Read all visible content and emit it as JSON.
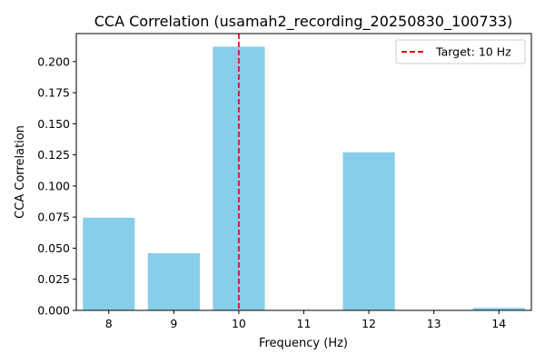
{
  "chart_data": {
    "type": "bar",
    "title": "CCA Correlation (usamah2_recording_20250830_100733)",
    "xlabel": "Frequency (Hz)",
    "ylabel": "CCA Correlation",
    "x": [
      8,
      9,
      10,
      11,
      12,
      13,
      14
    ],
    "values": [
      0.0745,
      0.046,
      0.212,
      0.0,
      0.127,
      0.0,
      0.002
    ],
    "xlim": [
      7.5,
      14.5
    ],
    "ylim": [
      0,
      0.2225
    ],
    "yticks": [
      "0.000",
      "0.025",
      "0.050",
      "0.075",
      "0.100",
      "0.125",
      "0.150",
      "0.175",
      "0.200"
    ],
    "xticks": [
      "8",
      "9",
      "10",
      "11",
      "12",
      "13",
      "14"
    ],
    "bar_color": "#87CEEB",
    "target_line": {
      "x": 10,
      "color": "#dd0000",
      "style": "dashed"
    },
    "legend": {
      "entries": [
        "Target: 10 Hz"
      ],
      "placement": "top-right"
    },
    "grid": false
  }
}
